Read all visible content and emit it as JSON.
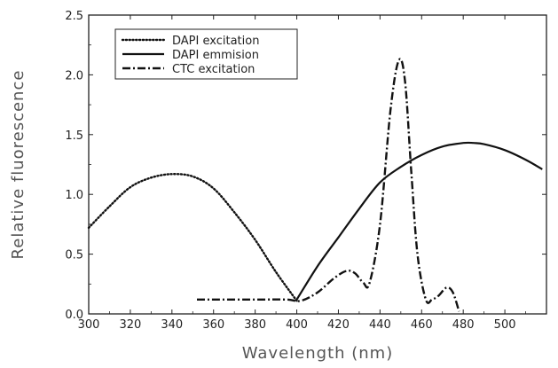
{
  "chart_data": {
    "type": "line",
    "xlabel": "Wavelength (nm)",
    "ylabel": "Relative fluorescence",
    "xlim": [
      300,
      520
    ],
    "ylim": [
      0,
      2.5
    ],
    "xticks": [
      300,
      320,
      340,
      360,
      380,
      400,
      420,
      440,
      460,
      480,
      500
    ],
    "yticks": [
      0.0,
      0.5,
      1.0,
      1.5,
      2.0,
      2.5
    ],
    "xtick_labels": [
      "300",
      "320",
      "340",
      "360",
      "380",
      "400",
      "420",
      "440",
      "460",
      "480",
      "500"
    ],
    "ytick_labels": [
      "0.0",
      "0.5",
      "1.0",
      "1.5",
      "2.0",
      "2.5"
    ],
    "grid": false,
    "legend_position": "top-left",
    "series": [
      {
        "name": "DAPI excitation",
        "style": "dotted",
        "x": [
          300,
          310,
          320,
          330,
          340,
          350,
          360,
          370,
          380,
          390,
          400
        ],
        "y": [
          0.72,
          0.9,
          1.06,
          1.14,
          1.17,
          1.15,
          1.05,
          0.85,
          0.62,
          0.35,
          0.11
        ]
      },
      {
        "name": "DAPI emmision",
        "style": "solid",
        "x": [
          400,
          410,
          420,
          430,
          440,
          450,
          460,
          470,
          480,
          485,
          490,
          500,
          510,
          518
        ],
        "y": [
          0.12,
          0.4,
          0.64,
          0.88,
          1.1,
          1.23,
          1.33,
          1.4,
          1.43,
          1.43,
          1.42,
          1.37,
          1.29,
          1.21
        ]
      },
      {
        "name": "CTC excitation",
        "style": "dashdot",
        "x": [
          352,
          360,
          380,
          395,
          402,
          410,
          418,
          424,
          428,
          432,
          435,
          440,
          445,
          449,
          452,
          455,
          458,
          462,
          465,
          468,
          472,
          475,
          478
        ],
        "y": [
          0.12,
          0.12,
          0.12,
          0.12,
          0.11,
          0.18,
          0.3,
          0.36,
          0.34,
          0.26,
          0.26,
          0.75,
          1.7,
          2.12,
          1.95,
          1.2,
          0.5,
          0.12,
          0.12,
          0.15,
          0.22,
          0.18,
          0.02
        ]
      }
    ]
  }
}
